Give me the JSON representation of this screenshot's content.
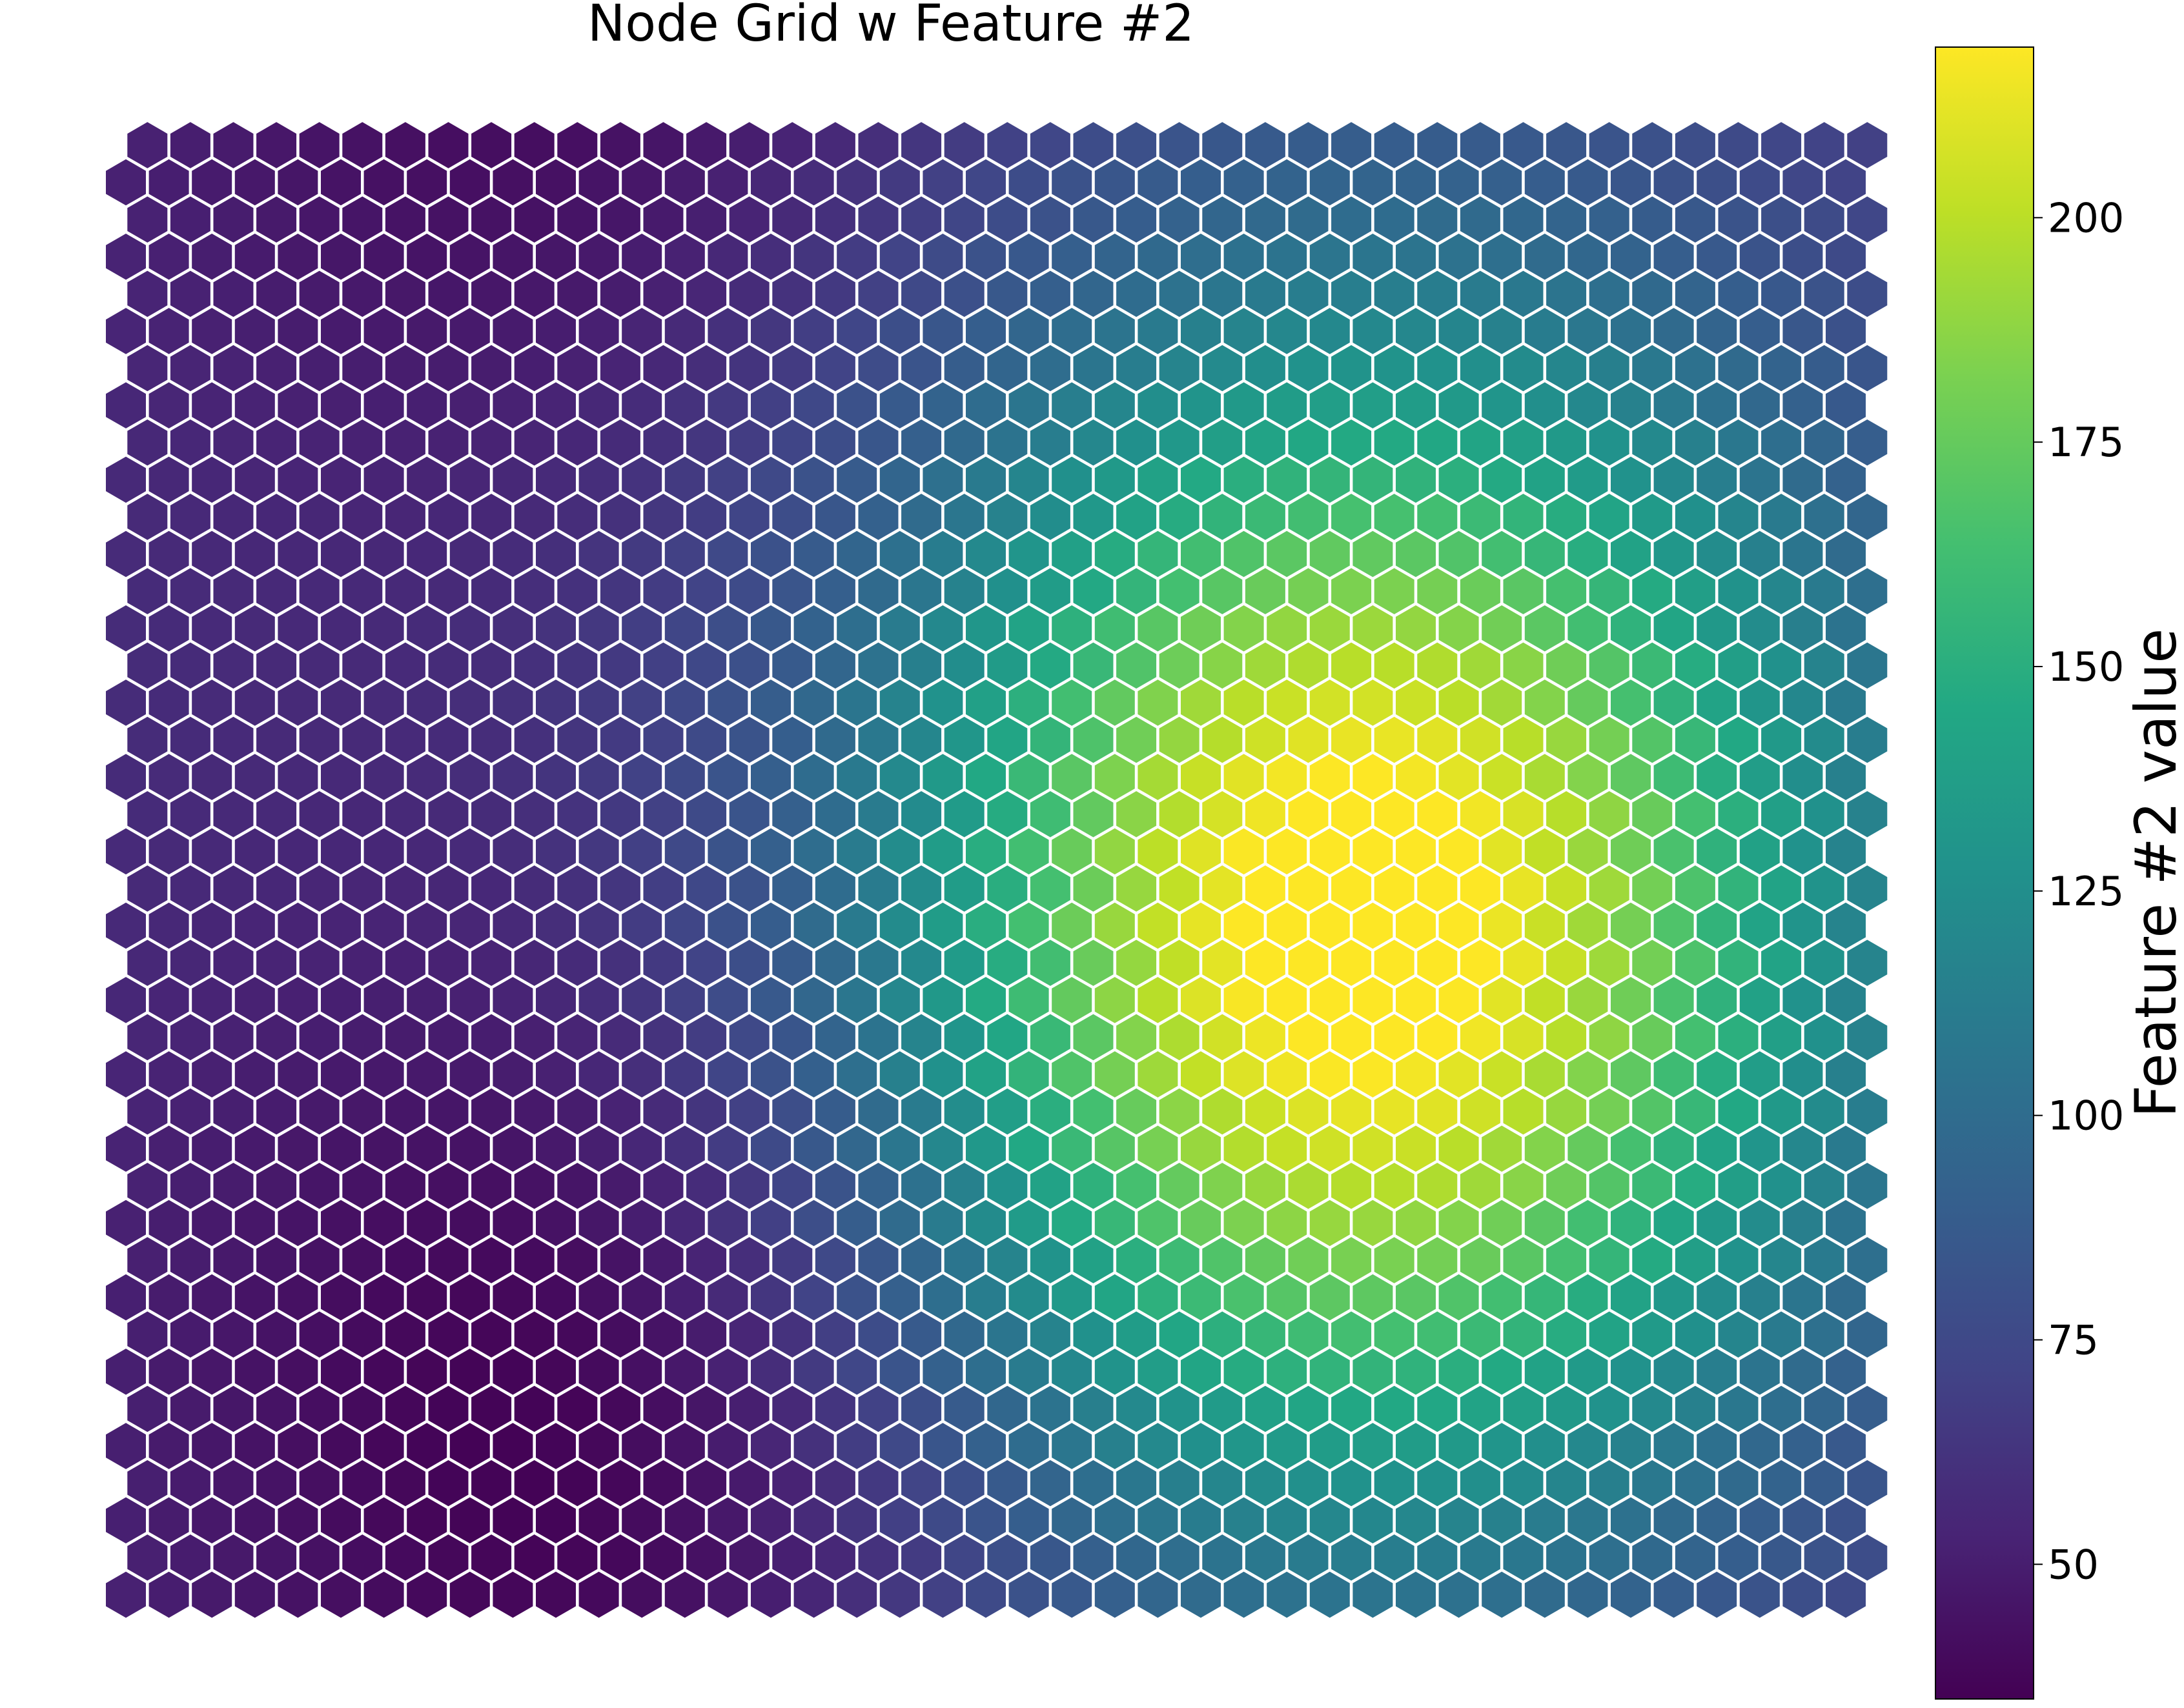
{
  "chart_data": {
    "type": "heatmap",
    "subtype": "hexagonal-grid",
    "title": "Node Grid w Feature #2",
    "colorbar": {
      "label": "Feature #2 value",
      "colormap": "viridis",
      "range": [
        35,
        219
      ],
      "ticks": [
        50,
        75,
        100,
        125,
        150,
        175,
        200
      ],
      "tick_labels": [
        "50",
        "75",
        "100",
        "125",
        "150",
        "175",
        "200"
      ]
    },
    "grid": {
      "columns": 41,
      "rows": 40,
      "odd_rows_offset": "right"
    },
    "value_field": {
      "description_of_surface": "low minimum near column 11 / bottom rows; high maximum near column 28 / middle rows",
      "min_value": 35,
      "max_value": 219
    },
    "hex_edge_color": "#ffffff",
    "background": "#ffffff"
  }
}
